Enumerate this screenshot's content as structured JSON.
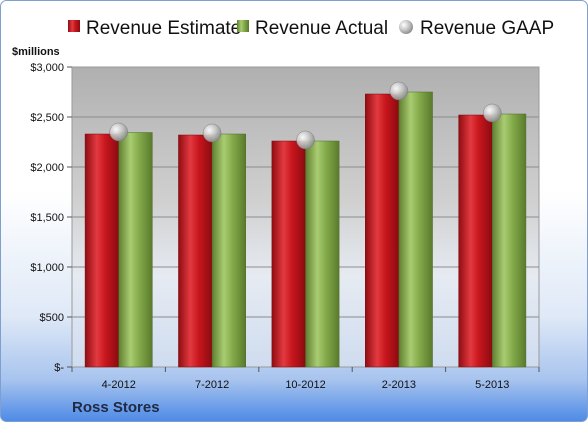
{
  "chart_data": {
    "type": "bar",
    "title": "",
    "company": "Ross Stores",
    "unit_label": "$millions",
    "categories": [
      "4-2012",
      "7-2012",
      "10-2012",
      "2-2013",
      "5-2013"
    ],
    "ylim": [
      0,
      3000
    ],
    "yticks": [
      0,
      500,
      1000,
      1500,
      2000,
      2500,
      3000
    ],
    "ytick_labels": [
      "$-",
      "$500",
      "$1,000",
      "$1,500",
      "$2,000",
      "$2,500",
      "$3,000"
    ],
    "grid": true,
    "legend_position": "top",
    "series": [
      {
        "name": "Revenue Estimate",
        "type": "bar",
        "color": "#c0161d",
        "values": [
          2330,
          2320,
          2260,
          2730,
          2520
        ]
      },
      {
        "name": "Revenue Actual",
        "type": "bar",
        "color": "#82a84a",
        "values": [
          2345,
          2330,
          2260,
          2750,
          2530
        ]
      },
      {
        "name": "Revenue GAAP",
        "type": "marker",
        "color": "#b8b8b8",
        "values": [
          2350,
          2340,
          2270,
          2760,
          2540
        ]
      }
    ]
  }
}
